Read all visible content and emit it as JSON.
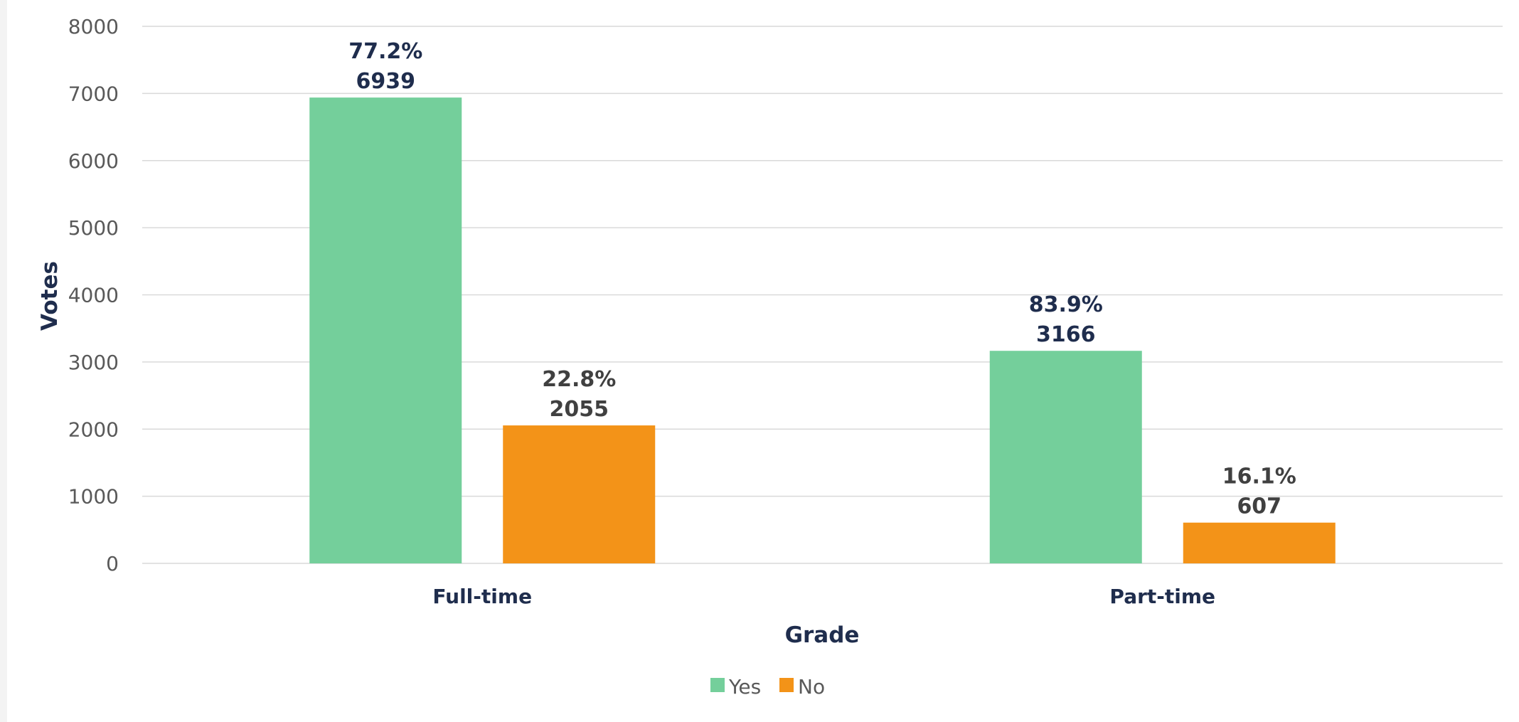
{
  "chart_data": {
    "type": "bar",
    "categories": [
      "Full-time",
      "Part-time"
    ],
    "series": [
      {
        "name": "Yes",
        "values": [
          6939,
          3166
        ],
        "percent_labels": [
          "77.2%",
          "83.9%"
        ],
        "value_labels": [
          "6939",
          "3166"
        ],
        "color": "#74cf9b",
        "label_color": "#1f2d4d"
      },
      {
        "name": "No",
        "values": [
          2055,
          607
        ],
        "percent_labels": [
          "22.8%",
          "16.1%"
        ],
        "value_labels": [
          "2055",
          "607"
        ],
        "color": "#f39318",
        "label_color": "#404040"
      }
    ],
    "xlabel": "Grade",
    "ylabel": "Votes",
    "ylim": [
      0,
      8000
    ],
    "yticks": [
      "0",
      "1000",
      "2000",
      "3000",
      "4000",
      "5000",
      "6000",
      "7000",
      "8000"
    ],
    "grid": true,
    "legend_position": "bottom"
  }
}
